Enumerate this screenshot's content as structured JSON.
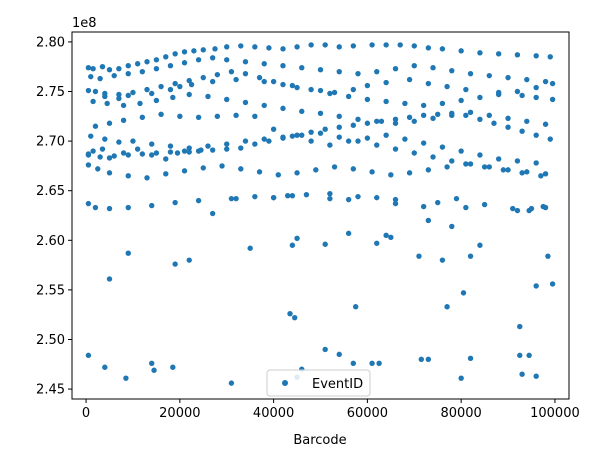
{
  "chart_data": {
    "type": "scatter",
    "title": "",
    "xlabel": "Barcode",
    "ylabel": "",
    "y_offset_label": "1e8",
    "xlim": [
      -3000,
      103000
    ],
    "ylim": [
      2.44,
      2.81
    ],
    "x_ticks": [
      0,
      20000,
      40000,
      60000,
      80000,
      100000
    ],
    "x_tick_labels": [
      "0",
      "20000",
      "40000",
      "60000",
      "80000",
      "100000"
    ],
    "y_ticks": [
      2.45,
      2.5,
      2.55,
      2.6,
      2.65,
      2.7,
      2.75,
      2.8
    ],
    "y_tick_labels": [
      "2.45",
      "2.50",
      "2.55",
      "2.60",
      "2.65",
      "2.70",
      "2.75",
      "2.80"
    ],
    "grid": false,
    "legend": {
      "position": "lower-center",
      "entries": [
        "EventID"
      ]
    },
    "color": "#1f77b4",
    "series": [
      {
        "name": "EventID",
        "x": [
          500,
          1500,
          3500,
          5000,
          7000,
          9000,
          11000,
          13000,
          15000,
          17000,
          19000,
          21000,
          23000,
          25000,
          27500,
          30000,
          33000,
          36000,
          39000,
          42000,
          45000,
          48000,
          51000,
          54000,
          57000,
          61000,
          64000,
          67000,
          70000,
          73000,
          76000,
          80000,
          84000,
          88000,
          92000,
          96000,
          99000,
          1000,
          3000,
          6000,
          9000,
          12000,
          15000,
          18000,
          21000,
          24000,
          27000,
          30000,
          34000,
          38000,
          42000,
          46000,
          50000,
          54000,
          58000,
          62000,
          66000,
          70000,
          74000,
          78000,
          82000,
          86000,
          90000,
          94000,
          98000,
          500,
          2000,
          4000,
          7000,
          10000,
          13000,
          16000,
          19000,
          22000,
          25000,
          28000,
          31000,
          34000,
          37000,
          40000,
          44000,
          48000,
          52000,
          56000,
          60000,
          64000,
          68000,
          72000,
          76000,
          80000,
          84000,
          88000,
          92000,
          96000,
          99500,
          1500,
          4500,
          8000,
          11500,
          15000,
          18500,
          22000,
          26000,
          30000,
          34000,
          38000,
          42000,
          46000,
          50000,
          54000,
          58000,
          62000,
          66000,
          70000,
          74000,
          78000,
          82000,
          86000,
          90000,
          94000,
          98000,
          500,
          3000,
          6000,
          9000,
          12000,
          15000,
          18000,
          21000,
          24000,
          27000,
          30000,
          33000,
          36000,
          39000,
          42000,
          45000,
          48000,
          51000,
          54000,
          57000,
          60000,
          63000,
          66000,
          69000,
          72000,
          75000,
          78000,
          81000,
          84000,
          87000,
          90000,
          93000,
          96000,
          99000,
          2000,
          5000,
          8000,
          12000,
          16000,
          20000,
          24000,
          28000,
          32000,
          36000,
          40000,
          44000,
          48000,
          52000,
          56000,
          60000,
          64000,
          68000,
          72000,
          76000,
          80000,
          84000,
          88000,
          92000,
          96000,
          1000,
          4000,
          7000,
          10000,
          14000,
          18000,
          22000,
          26000,
          30000,
          34000,
          38000,
          42000,
          46000,
          50000,
          54000,
          58000,
          62000,
          66000,
          70000,
          74000,
          78000,
          82000,
          86000,
          90000,
          94000,
          98000,
          500,
          2500,
          5000,
          9000,
          13000,
          17000,
          21000,
          25000,
          29000,
          33000,
          37000,
          41000,
          45000,
          49000,
          53000,
          57000,
          61000,
          65000,
          69000,
          73000,
          77000,
          81000,
          85000,
          89000,
          93000,
          97000,
          500,
          2000,
          5000,
          9000,
          14000,
          19000,
          24000,
          27000,
          32000,
          40000,
          43000,
          47000,
          52000,
          58000,
          62000,
          66000,
          75000,
          79000,
          92000,
          95000,
          98000,
          500,
          1500,
          3500,
          5000,
          8000,
          11000,
          14000,
          17000,
          19500,
          22000,
          24500,
          31000,
          36000,
          40000,
          44000,
          52000,
          56000,
          66000,
          72000,
          81000,
          85000,
          91000,
          94500,
          97500,
          4000,
          7000,
          9000,
          14000,
          18000,
          20000,
          22500,
          27000,
          32000,
          38000,
          42000,
          45000,
          50000,
          53000,
          57000,
          60000,
          64000,
          69000,
          73000,
          77000,
          81000,
          88000,
          93000,
          96000,
          99500,
          9000,
          19000,
          22000,
          35000,
          44000,
          45000,
          51000,
          56000,
          62000,
          64000,
          65000,
          71000,
          73000,
          76000,
          78000,
          82000,
          84000,
          98500,
          5000,
          43500,
          44500,
          57500,
          77000,
          80500,
          96000,
          99500,
          92500,
          500,
          4000,
          8500,
          14000,
          18500,
          14500,
          31000,
          45000,
          46000,
          51000,
          54000,
          57000,
          61000,
          62500,
          71500,
          73000,
          82000,
          92500,
          93000,
          94500,
          96000,
          80000
        ],
        "y": [
          2.774,
          2.773,
          2.775,
          2.772,
          2.773,
          2.776,
          2.778,
          2.78,
          2.782,
          2.785,
          2.788,
          2.79,
          2.791,
          2.792,
          2.793,
          2.795,
          2.796,
          2.795,
          2.794,
          2.793,
          2.795,
          2.797,
          2.797,
          2.795,
          2.796,
          2.797,
          2.797,
          2.797,
          2.796,
          2.794,
          2.793,
          2.791,
          2.789,
          2.788,
          2.787,
          2.786,
          2.785,
          2.765,
          2.763,
          2.766,
          2.768,
          2.77,
          2.773,
          2.776,
          2.779,
          2.782,
          2.784,
          2.782,
          2.78,
          2.778,
          2.776,
          2.774,
          2.772,
          2.77,
          2.768,
          2.77,
          2.773,
          2.776,
          2.774,
          2.771,
          2.768,
          2.766,
          2.764,
          2.762,
          2.76,
          2.751,
          2.75,
          2.748,
          2.747,
          2.749,
          2.752,
          2.755,
          2.758,
          2.761,
          2.764,
          2.767,
          2.77,
          2.768,
          2.764,
          2.76,
          2.756,
          2.752,
          2.748,
          2.745,
          2.742,
          2.74,
          2.738,
          2.736,
          2.738,
          2.741,
          2.744,
          2.747,
          2.75,
          2.754,
          2.758,
          2.74,
          2.738,
          2.736,
          2.738,
          2.741,
          2.744,
          2.747,
          2.745,
          2.742,
          2.739,
          2.736,
          2.733,
          2.73,
          2.728,
          2.725,
          2.722,
          2.72,
          2.718,
          2.72,
          2.723,
          2.726,
          2.729,
          2.726,
          2.723,
          2.72,
          2.717,
          2.686,
          2.684,
          2.685,
          2.686,
          2.687,
          2.688,
          2.689,
          2.69,
          2.69,
          2.691,
          2.692,
          2.693,
          2.697,
          2.7,
          2.703,
          2.706,
          2.709,
          2.712,
          2.714,
          2.716,
          2.718,
          2.72,
          2.722,
          2.724,
          2.726,
          2.727,
          2.728,
          2.726,
          2.722,
          2.718,
          2.714,
          2.71,
          2.706,
          2.702,
          2.715,
          2.718,
          2.721,
          2.724,
          2.727,
          2.725,
          2.724,
          2.725,
          2.726,
          2.725,
          2.712,
          2.705,
          2.7,
          2.696,
          2.7,
          2.703,
          2.706,
          2.702,
          2.698,
          2.694,
          2.69,
          2.686,
          2.682,
          2.68,
          2.678,
          2.705,
          2.702,
          2.699,
          2.7,
          2.697,
          2.695,
          2.693,
          2.695,
          2.697,
          2.7,
          2.702,
          2.704,
          2.706,
          2.708,
          2.704,
          2.7,
          2.696,
          2.692,
          2.688,
          2.684,
          2.68,
          2.677,
          2.674,
          2.671,
          2.669,
          2.667,
          2.676,
          2.672,
          2.668,
          2.665,
          2.663,
          2.667,
          2.67,
          2.673,
          2.675,
          2.672,
          2.669,
          2.666,
          2.668,
          2.671,
          2.674,
          2.672,
          2.669,
          2.666,
          2.668,
          2.671,
          2.674,
          2.677,
          2.674,
          2.671,
          2.668,
          2.665,
          2.637,
          2.633,
          2.632,
          2.633,
          2.635,
          2.638,
          2.64,
          2.627,
          2.642,
          2.643,
          2.645,
          2.646,
          2.647,
          2.644,
          2.643,
          2.641,
          2.638,
          2.642,
          2.63,
          2.632,
          2.633,
          2.687,
          2.69,
          2.692,
          2.683,
          2.688,
          2.692,
          2.686,
          2.682,
          2.688,
          2.689,
          2.691,
          2.642,
          2.644,
          2.643,
          2.645,
          2.642,
          2.641,
          2.637,
          2.634,
          2.633,
          2.636,
          2.632,
          2.63,
          2.634,
          2.745,
          2.743,
          2.746,
          2.748,
          2.752,
          2.755,
          2.757,
          2.76,
          2.762,
          2.76,
          2.757,
          2.754,
          2.751,
          2.749,
          2.752,
          2.756,
          2.759,
          2.762,
          2.758,
          2.755,
          2.752,
          2.749,
          2.746,
          2.744,
          2.742,
          2.587,
          2.576,
          2.58,
          2.592,
          2.595,
          2.602,
          2.596,
          2.607,
          2.597,
          2.605,
          2.603,
          2.584,
          2.62,
          2.58,
          2.614,
          2.584,
          2.595,
          2.584,
          2.561,
          2.526,
          2.522,
          2.533,
          2.533,
          2.547,
          2.554,
          2.556,
          2.513,
          2.484,
          2.472,
          2.461,
          2.476,
          2.472,
          2.469,
          2.456,
          2.462,
          2.47,
          2.49,
          2.485,
          2.476,
          2.476,
          2.476,
          2.48,
          2.48,
          2.481,
          2.484,
          2.465,
          2.484,
          2.463,
          2.461
        ]
      }
    ]
  }
}
